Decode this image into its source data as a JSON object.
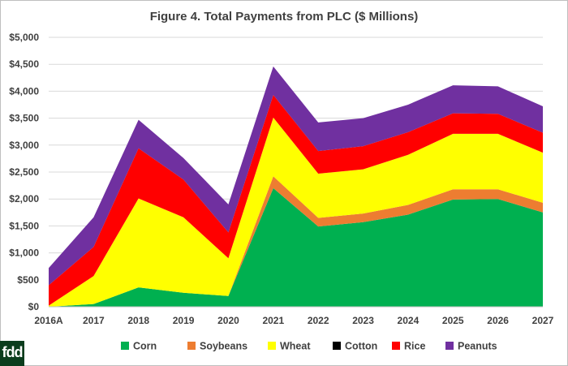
{
  "chart_data": {
    "type": "area",
    "stacked": true,
    "title": "Figure 4.  Total Payments from PLC ($ Millions)",
    "xlabel": "",
    "ylabel": "",
    "categories": [
      "2016A",
      "2017",
      "2018",
      "2019",
      "2020",
      "2021",
      "2022",
      "2023",
      "2024",
      "2025",
      "2026",
      "2027"
    ],
    "ylim": [
      0,
      5000
    ],
    "yticks": [
      0,
      500,
      1000,
      1500,
      2000,
      2500,
      3000,
      3500,
      4000,
      4500,
      5000
    ],
    "ytick_labels": [
      "$0",
      "$500",
      "$1,000",
      "$1,500",
      "$2,000",
      "$2,500",
      "$3,000",
      "$3,500",
      "$4,000",
      "$4,500",
      "$5,000"
    ],
    "grid": true,
    "legend_position": "bottom",
    "series": [
      {
        "name": "Corn",
        "color": "#00b050",
        "values": [
          0,
          50,
          360,
          260,
          200,
          2200,
          1490,
          1570,
          1710,
          1990,
          2000,
          1750
        ]
      },
      {
        "name": "Soybeans",
        "color": "#ed7d31",
        "values": [
          0,
          0,
          0,
          0,
          0,
          220,
          160,
          160,
          180,
          190,
          180,
          180
        ]
      },
      {
        "name": "Wheat",
        "color": "#ffff00",
        "values": [
          20,
          520,
          1650,
          1400,
          700,
          1090,
          820,
          820,
          930,
          1030,
          1030,
          930
        ]
      },
      {
        "name": "Cotton",
        "color": "#000000",
        "values": [
          0,
          0,
          0,
          0,
          0,
          0,
          0,
          0,
          0,
          0,
          0,
          0
        ]
      },
      {
        "name": "Rice",
        "color": "#ff0000",
        "values": [
          380,
          540,
          930,
          700,
          480,
          420,
          420,
          430,
          420,
          380,
          370,
          370
        ]
      },
      {
        "name": "Peanuts",
        "color": "#7030a0",
        "values": [
          320,
          550,
          530,
          400,
          520,
          530,
          530,
          520,
          510,
          520,
          510,
          490
        ]
      }
    ]
  },
  "logo": {
    "text": "fdd"
  }
}
